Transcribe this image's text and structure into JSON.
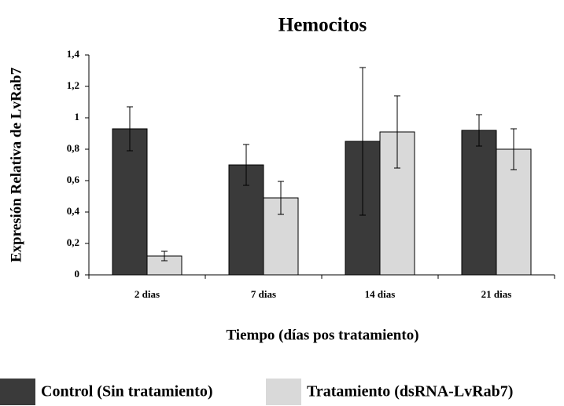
{
  "chart_data": {
    "type": "bar",
    "title": "Hemocitos",
    "x_label": "Tiempo (días pos tratamiento)",
    "y_label": "Expresión Relativa de LvRab7",
    "categories": [
      "2 dias",
      "7 dias",
      "14 dias",
      "21 dias"
    ],
    "series": [
      {
        "name": "Control (Sin tratamiento)",
        "color": "#3a3a3a",
        "values": [
          0.93,
          0.7,
          0.85,
          0.92
        ],
        "errors": [
          0.14,
          0.13,
          0.47,
          0.1
        ]
      },
      {
        "name": "Tratamiento (dsRNA-LvRab7)",
        "color": "#d9d9d9",
        "values": [
          0.12,
          0.49,
          0.91,
          0.8
        ],
        "errors": [
          0.03,
          0.105,
          0.23,
          0.13
        ]
      }
    ],
    "ylim": [
      0,
      1.4
    ],
    "yticks": [
      0,
      {
        "value": 0.2,
        "label": "0,2"
      },
      {
        "value": 0.4,
        "label": "0,4"
      },
      {
        "value": 0.6,
        "label": "0,6"
      },
      {
        "value": 0.8,
        "label": "0,8"
      },
      1,
      {
        "value": 1.2,
        "label": "1,2"
      },
      {
        "value": 1.4,
        "label": "1,4"
      }
    ],
    "legend": "bottom"
  }
}
